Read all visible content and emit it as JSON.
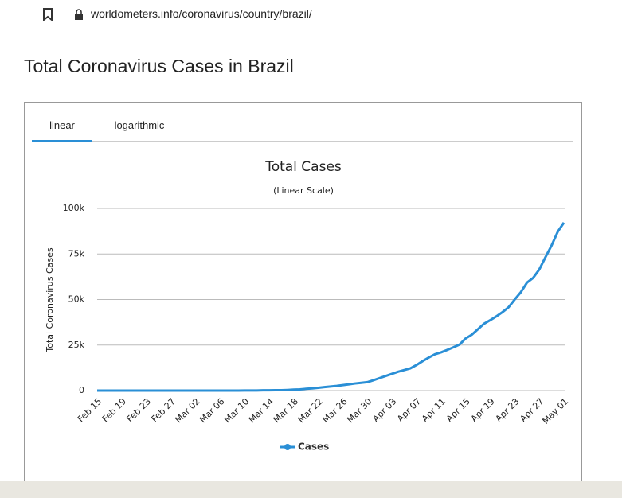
{
  "browser": {
    "url": "worldometers.info/coronavirus/country/brazil/"
  },
  "page": {
    "heading": "Total Coronavirus Cases in Brazil"
  },
  "tabs": [
    "linear",
    "logarithmic"
  ],
  "chart_data": {
    "type": "line",
    "title": "Total Cases",
    "subtitle": "(Linear Scale)",
    "y_label": "Total Coronavirus Cases",
    "categories": [
      "Feb 15",
      null,
      null,
      null,
      "Feb 19",
      null,
      null,
      null,
      "Feb 23",
      null,
      null,
      null,
      "Feb 27",
      null,
      null,
      null,
      "Mar 02",
      null,
      null,
      null,
      "Mar 06",
      null,
      null,
      null,
      "Mar 10",
      null,
      null,
      null,
      "Mar 14",
      null,
      null,
      null,
      "Mar 18",
      null,
      null,
      null,
      "Mar 22",
      null,
      null,
      null,
      "Mar 26",
      null,
      null,
      null,
      "Mar 30",
      null,
      null,
      null,
      "Apr 03",
      null,
      null,
      null,
      "Apr 07",
      null,
      null,
      null,
      "Apr 11",
      null,
      null,
      null,
      "Apr 15",
      null,
      null,
      null,
      "Apr 19",
      null,
      null,
      null,
      "Apr 23",
      null,
      null,
      null,
      "Apr 27",
      null,
      null,
      null,
      "May 01"
    ],
    "series": [
      {
        "name": "Cases",
        "color": "#2a8fd6",
        "values": [
          0,
          0,
          0,
          0,
          0,
          0,
          0,
          0,
          0,
          0,
          0,
          1,
          1,
          1,
          2,
          2,
          2,
          2,
          3,
          8,
          13,
          19,
          25,
          25,
          34,
          52,
          77,
          151,
          151,
          200,
          234,
          346,
          529,
          640,
          970,
          1178,
          1546,
          1924,
          2247,
          2554,
          2985,
          3417,
          3904,
          4256,
          4630,
          5717,
          6880,
          8044,
          9194,
          10360,
          11254,
          12183,
          14034,
          16188,
          18145,
          19943,
          20984,
          22318,
          23723,
          25262,
          28610,
          30683,
          33682,
          36722,
          38654,
          40743,
          43079,
          45757,
          50036,
          54043,
          59324,
          61888,
          66501,
          73235,
          79685,
          87187,
          92202
        ]
      }
    ],
    "ylim": [
      0,
      100000
    ],
    "yticks": [
      0,
      {
        "value": 25000,
        "label": "25k"
      },
      {
        "value": 50000,
        "label": "50k"
      },
      {
        "value": 75000,
        "label": "75k"
      },
      {
        "value": 100000,
        "label": "100k"
      }
    ],
    "grid": true
  }
}
